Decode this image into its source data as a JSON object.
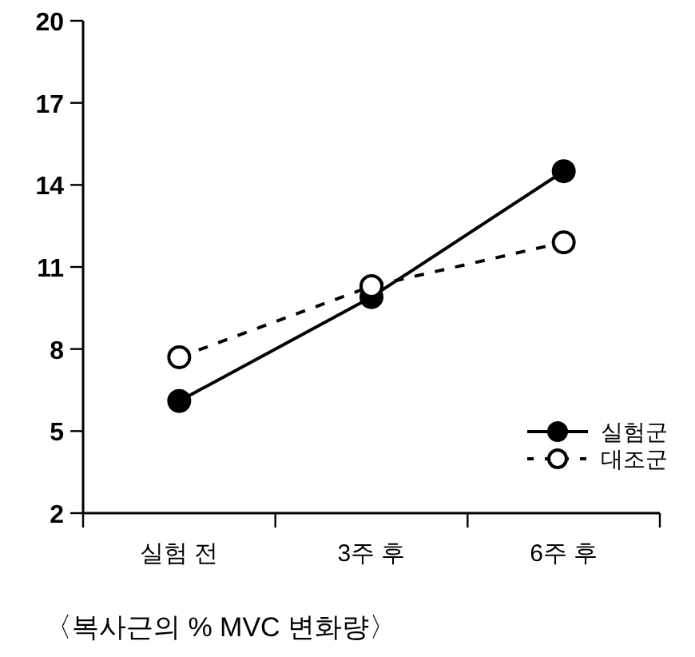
{
  "chart_data": {
    "type": "line",
    "categories": [
      "실험 전",
      "3주 후",
      "6주 후"
    ],
    "series": [
      {
        "name": "실험군",
        "color": "#000000",
        "line_style": "solid",
        "values": [
          6.1,
          9.9,
          14.5
        ]
      },
      {
        "name": "대조군",
        "color": "#000000",
        "line_style": "dashed",
        "values": [
          7.7,
          10.3,
          11.9
        ]
      }
    ],
    "ylim": [
      2,
      20
    ],
    "yticks": [
      2,
      5,
      8,
      11,
      14,
      17,
      20
    ],
    "marker": "circle",
    "legend": "bottom right",
    "annotations": [
      "〈복사근의 % MVC 변화량〉"
    ]
  }
}
